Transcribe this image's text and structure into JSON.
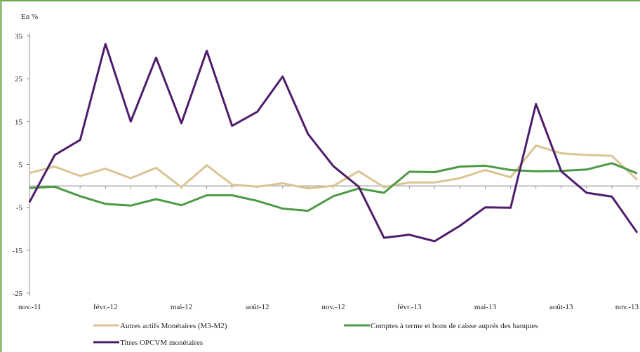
{
  "chart_data": {
    "type": "line",
    "unit_label": "En %",
    "x": [
      "nov.-11",
      "déc.-11",
      "janv.-12",
      "févr.-12",
      "mars-12",
      "avr.-12",
      "mai-12",
      "juin-12",
      "juil.-12",
      "août-12",
      "sept.-12",
      "oct.-12",
      "nov.-12",
      "déc.-12",
      "janv.-13",
      "févr.-13",
      "mars-13",
      "avr.-13",
      "mai-13",
      "juin-13",
      "juil.-13",
      "août-13",
      "sept.-13",
      "oct.-13",
      "nov.-13"
    ],
    "x_tick_labels": [
      "nov.-11",
      "févr.-12",
      "mai-12",
      "août-12",
      "nov.-12",
      "févr.-13",
      "mai-13",
      "août-13",
      "nov.-13"
    ],
    "y_ticks": [
      35,
      25,
      15,
      5,
      -5,
      -15,
      -25
    ],
    "ylim": [
      -25,
      35
    ],
    "grid": false,
    "legend_position": "bottom",
    "series": [
      {
        "name": "Autres actifs Monétaires (M3-M2)",
        "color": "#d9c592",
        "values": [
          3.0,
          4.5,
          2.3,
          4.0,
          1.8,
          4.2,
          -0.3,
          4.8,
          0.3,
          -0.2,
          0.6,
          -0.6,
          0.0,
          3.4,
          -0.3,
          0.8,
          0.8,
          1.8,
          3.7,
          2.0,
          9.4,
          7.6,
          7.2,
          7.0,
          1.4
        ]
      },
      {
        "name": "Comptes à terme et bons de caisse auprés des banques",
        "color": "#4c9a46",
        "values": [
          -0.5,
          -0.2,
          -2.4,
          -4.2,
          -4.6,
          -3.1,
          -4.5,
          -2.2,
          -2.2,
          -3.5,
          -5.3,
          -5.8,
          -2.4,
          -0.6,
          -1.6,
          3.3,
          3.2,
          4.5,
          4.7,
          3.7,
          3.4,
          3.5,
          3.8,
          5.3,
          2.9
        ]
      },
      {
        "name": "Titres OPCVM monétaires",
        "color": "#4f1d6b",
        "values": [
          -3.8,
          7.2,
          10.7,
          33.1,
          15.0,
          29.9,
          14.6,
          31.5,
          14.0,
          17.3,
          25.5,
          12.1,
          4.6,
          -0.2,
          -12.1,
          -11.4,
          -12.9,
          -9.3,
          -5.0,
          -5.1,
          19.1,
          3.4,
          -1.6,
          -2.5,
          -10.9
        ]
      }
    ]
  }
}
